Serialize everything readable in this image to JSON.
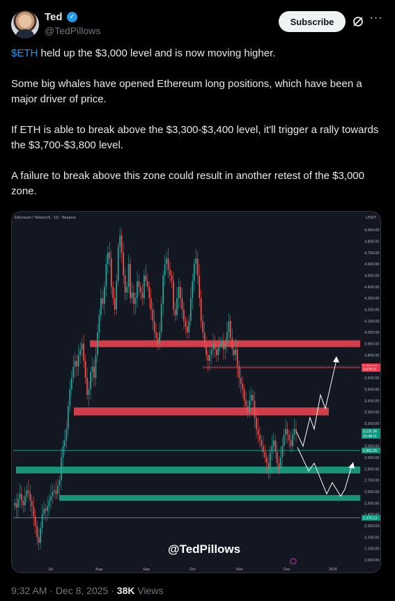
{
  "author": {
    "name": "Ted",
    "handle": "@TedPillows",
    "verified_icon": "verified-badge-icon"
  },
  "actions": {
    "subscribe_label": "Subscribe",
    "grok_icon": "grok-icon",
    "more_label": "···"
  },
  "tweet": {
    "cashtag": "$ETH",
    "p1_rest": " held up the $3,000 level and is now moving higher.",
    "p2": "Some big whales have opened Ethereum long positions, which have been a major driver of price.",
    "p3": "If ETH is able to break above the $3,300-$3,400 level, it'll trigger a rally towards the $3,700-$3,800 level.",
    "p4": "A failure to break above this zone could result in another retest of the $3,000 zone."
  },
  "footer": {
    "time": "9:32 AM",
    "sep": " · ",
    "date": "Dec 8, 2025",
    "sep2": " · ",
    "views": "38K",
    "views_label": " Views"
  },
  "chart_data": {
    "type": "candlestick",
    "header_text": "Ethereum / TetherUS · 1D · Binance",
    "quote_currency": "USDT",
    "watermark": "@TedPillows",
    "ylim": [
      2000,
      4950
    ],
    "y_ticks": [
      2000,
      2100,
      2200,
      2300,
      2400,
      2500,
      2600,
      2700,
      2800,
      2900,
      3000,
      3100,
      3200,
      3300,
      3400,
      3500,
      3600,
      3700,
      3800,
      3900,
      4000,
      4100,
      4200,
      4300,
      4400,
      4500,
      4600,
      4700,
      4800,
      4900
    ],
    "y_tick_labels": [
      "2,000.00",
      "2,100.00",
      "2,200.00",
      "2,300.00",
      "2,400.00",
      "2,500.00",
      "2,600.00",
      "2,700.00",
      "2,800.00",
      "2,900.00",
      "3,000.00",
      "3,100.00",
      "3,200.00",
      "3,300.00",
      "3,400.00",
      "3,500.00",
      "3,600.00",
      "3,700.00",
      "3,800.00",
      "3,900.00",
      "4,000.00",
      "4,100.00",
      "4,200.00",
      "4,300.00",
      "4,400.00",
      "4,500.00",
      "4,600.00",
      "4,700.00",
      "4,800.00",
      "4,900.00"
    ],
    "x_labels": [
      "Jul",
      "Aug",
      "Sep",
      "Oct",
      "Nov",
      "Dec",
      "2026"
    ],
    "price_tags": [
      {
        "label": "3,702.07",
        "value": 3702,
        "color": "#f23645"
      },
      {
        "label": "3,678.11",
        "value": 3678,
        "color": "#f23645"
      },
      {
        "label": "3,131.36",
        "value": 3131,
        "color": "#089981"
      },
      {
        "label": "15:48:11",
        "value": 3090,
        "color": "#089981"
      },
      {
        "label": "2,962.25",
        "value": 2962,
        "color": "#089981"
      },
      {
        "label": "2,370.13",
        "value": 2370,
        "color": "#089981"
      }
    ],
    "zones": [
      {
        "name": "resistance-upper",
        "from": 3870,
        "to": 3930,
        "color": "#e2414d"
      },
      {
        "name": "resistance-mid",
        "from": 3270,
        "to": 3340,
        "color": "#e2414d"
      },
      {
        "name": "support-upper",
        "from": 2760,
        "to": 2820,
        "color": "#1b9e82"
      },
      {
        "name": "support-lower",
        "from": 2520,
        "to": 2570,
        "color": "#1b9e82"
      }
    ],
    "lines": [
      {
        "value": 3690,
        "color": "#f23645"
      },
      {
        "value": 2962,
        "color": "#1b9e82"
      },
      {
        "value": 2370,
        "color": "#1b9e82"
      }
    ],
    "closes": [
      2500,
      2460,
      2540,
      2580,
      2520,
      2480,
      2560,
      2610,
      2590,
      2520,
      2470,
      2380,
      2300,
      2200,
      2150,
      2280,
      2400,
      2450,
      2430,
      2470,
      2520,
      2560,
      2600,
      2610,
      2580,
      2650,
      2700,
      2900,
      3000,
      3050,
      3150,
      3350,
      3500,
      3600,
      3700,
      3750,
      3700,
      3800,
      3850,
      3900,
      3750,
      3600,
      3450,
      3500,
      3650,
      3700,
      3600,
      3800,
      4000,
      4150,
      4300,
      4250,
      4400,
      4600,
      4700,
      4650,
      4400,
      4300,
      4200,
      4450,
      4750,
      4850,
      4700,
      4500,
      4350,
      4400,
      4600,
      4300,
      4350,
      4250,
      4300,
      4450,
      4400,
      4350,
      4300,
      4500,
      4450,
      4400,
      4300,
      4200,
      4100,
      4000,
      3950,
      3900,
      4000,
      4250,
      4500,
      4600,
      4650,
      4550,
      4500,
      4450,
      4200,
      4150,
      4300,
      4400,
      4300,
      4200,
      4100,
      4050,
      4000,
      4100,
      4300,
      4450,
      4600,
      4650,
      4500,
      4300,
      4100,
      4000,
      3900,
      3800,
      3750,
      3800,
      3850,
      3900,
      3850,
      3800,
      3870,
      3900,
      3920,
      3850,
      3900,
      4000,
      4100,
      3950,
      3850,
      3800,
      3850,
      3700,
      3600,
      3550,
      3500,
      3400,
      3350,
      3300,
      3400,
      3450,
      3400,
      3250,
      3150,
      3100,
      3050,
      3000,
      2950,
      2900,
      2850,
      2800,
      2950,
      3000,
      3050,
      2950,
      2850,
      2800,
      2900,
      3000,
      3100,
      3150,
      3100,
      3050,
      3000,
      3100,
      3150,
      3131
    ]
  }
}
